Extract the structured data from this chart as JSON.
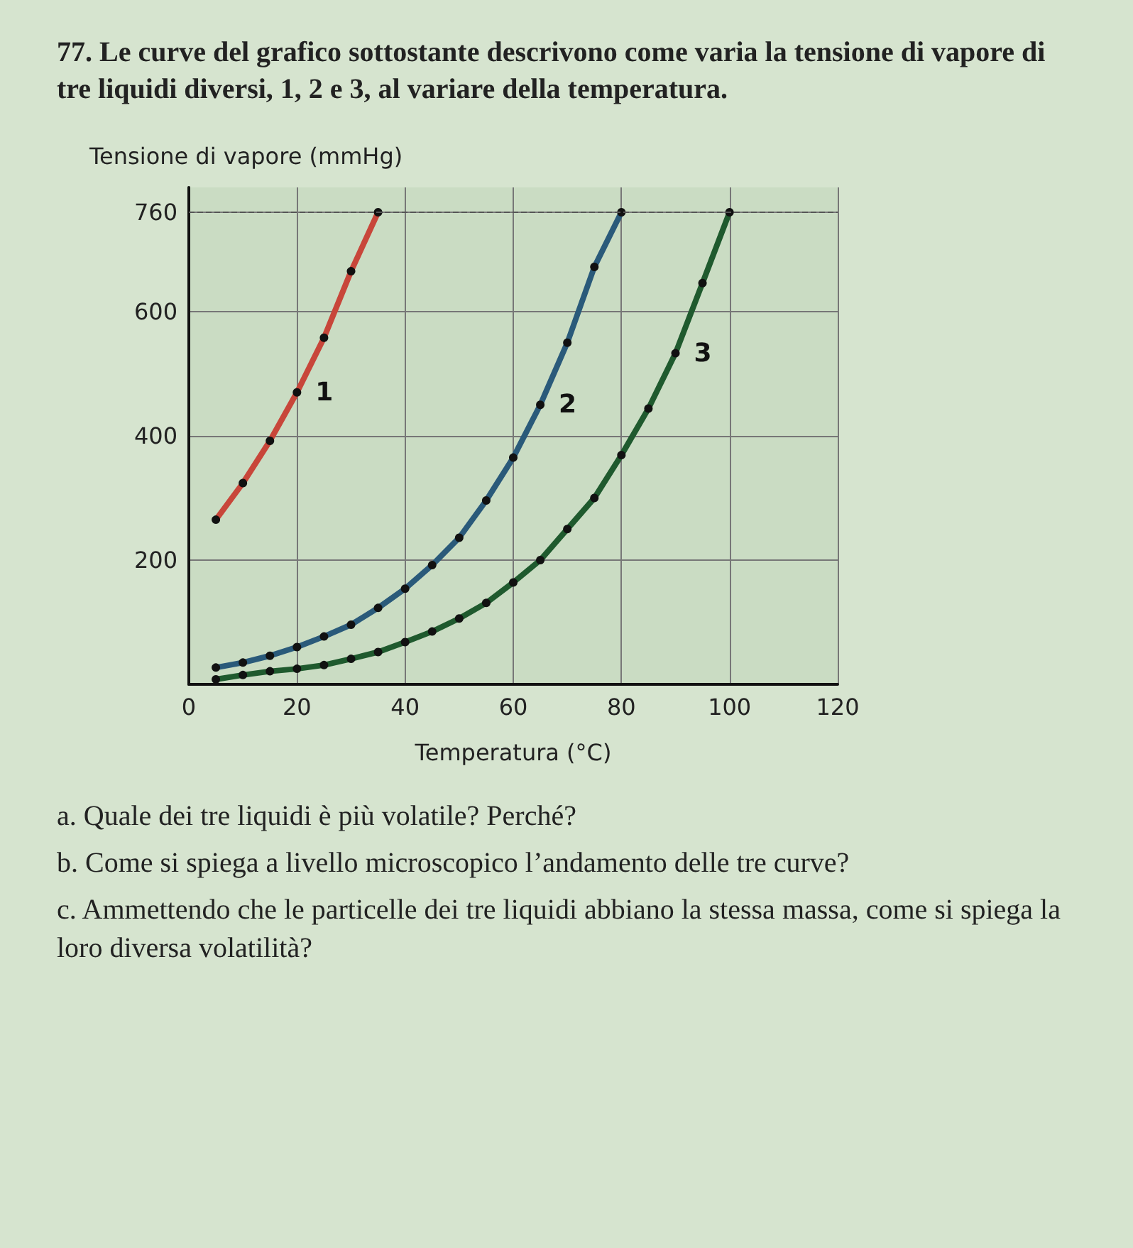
{
  "chart_data": {
    "type": "line",
    "title": "77. Le curve del grafico sottostante descrivono come varia la tensione di vapore di tre liquidi diversi, 1, 2 e 3, al variare della temperatura.",
    "xlabel": "Temperatura (°C)",
    "ylabel": "Tensione di vapore (mmHg)",
    "annotations": [
      "a. Quale dei tre liquidi è più volatile? Perché?",
      "b. Come si spiega a livello microscopico l’andamento delle tre curve?",
      "c. Ammettendo che le particelle dei tre liquidi abbiano la stessa massa, come si spiega la loro diversa volatilità?"
    ],
    "series": [
      {
        "name": "1",
        "color": "#c8463a",
        "x": [
          5,
          10,
          15,
          20,
          25,
          30,
          35
        ],
        "values": [
          265,
          324,
          392,
          470,
          558,
          665,
          760
        ]
      },
      {
        "name": "2",
        "color": "#2a5a7a",
        "x": [
          5,
          10,
          15,
          20,
          25,
          30,
          35,
          40,
          45,
          50,
          55,
          60,
          65,
          70,
          75,
          80
        ],
        "values": [
          27,
          35,
          46,
          60,
          77,
          96,
          123,
          154,
          192,
          236,
          296,
          365,
          450,
          550,
          672,
          760
        ]
      },
      {
        "name": "3",
        "color": "#1f5a2e",
        "x": [
          5,
          10,
          15,
          20,
          25,
          30,
          35,
          40,
          45,
          50,
          55,
          60,
          65,
          70,
          75,
          80,
          85,
          90,
          95,
          100
        ],
        "values": [
          8,
          15,
          21,
          25,
          31,
          41,
          52,
          68,
          85,
          106,
          131,
          164,
          200,
          250,
          300,
          369,
          444,
          533,
          646,
          760
        ]
      }
    ],
    "xlim": [
      0,
      120
    ],
    "xticks": [
      0,
      20,
      40,
      60,
      80,
      100,
      120
    ],
    "ylim": [
      0,
      800
    ],
    "yticks": [
      200,
      400,
      600,
      760
    ],
    "ref_lines": [
      {
        "axis": "y",
        "value": 760,
        "line_style": "dashed",
        "color": "#555555"
      }
    ],
    "grid": true,
    "marker": "circle",
    "line_style": "solid"
  }
}
